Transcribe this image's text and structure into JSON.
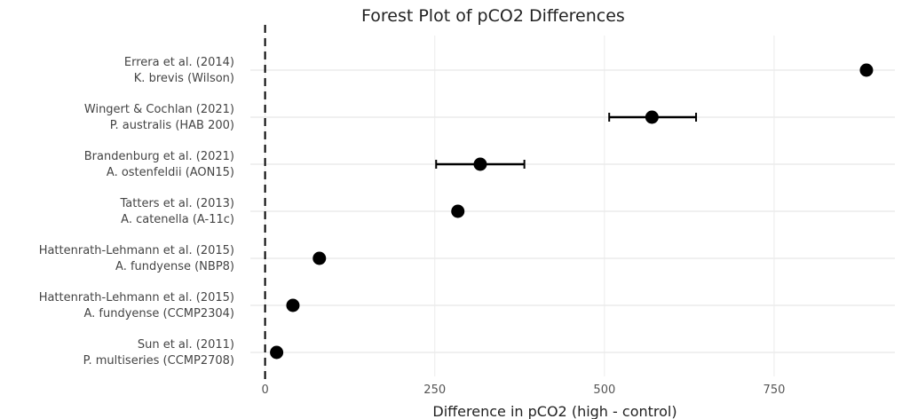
{
  "chart_data": {
    "type": "scatter",
    "title": "Forest Plot of pCO2 Differences",
    "xlabel": "Difference in pCO2 (high - control)",
    "ylabel": "",
    "xlim": [
      0,
      930
    ],
    "xticks": [
      0,
      250,
      500,
      750
    ],
    "xtick_labels": [
      "0",
      "250",
      "500",
      "750"
    ],
    "reference_line": 0,
    "grid": true,
    "rows": [
      {
        "study": "Errera et al. (2014)",
        "strain": "K. brevis (Wilson)",
        "value": 886,
        "lower": null,
        "upper": null
      },
      {
        "study": "Wingert & Cochlan (2021)",
        "strain": "P. australis (HAB 200)",
        "value": 570,
        "lower": 507,
        "upper": 635
      },
      {
        "study": "Brandenburg et al. (2021)",
        "strain": "A. ostenfeldii (AON15)",
        "value": 317,
        "lower": 252,
        "upper": 382
      },
      {
        "study": "Tatters et al. (2013)",
        "strain": "A. catenella (A-11c)",
        "value": 284,
        "lower": null,
        "upper": null
      },
      {
        "study": "Hattenrath-Lehmann et al. (2015)",
        "strain": "A. fundyense (NBP8)",
        "value": 80,
        "lower": null,
        "upper": null
      },
      {
        "study": "Hattenrath-Lehmann et al. (2015)",
        "strain": "A. fundyense (CCMP2304)",
        "value": 41,
        "lower": null,
        "upper": null
      },
      {
        "study": "Sun et al. (2011)",
        "strain": "P. multiseries (CCMP2708)",
        "value": 17,
        "lower": null,
        "upper": null
      }
    ]
  }
}
